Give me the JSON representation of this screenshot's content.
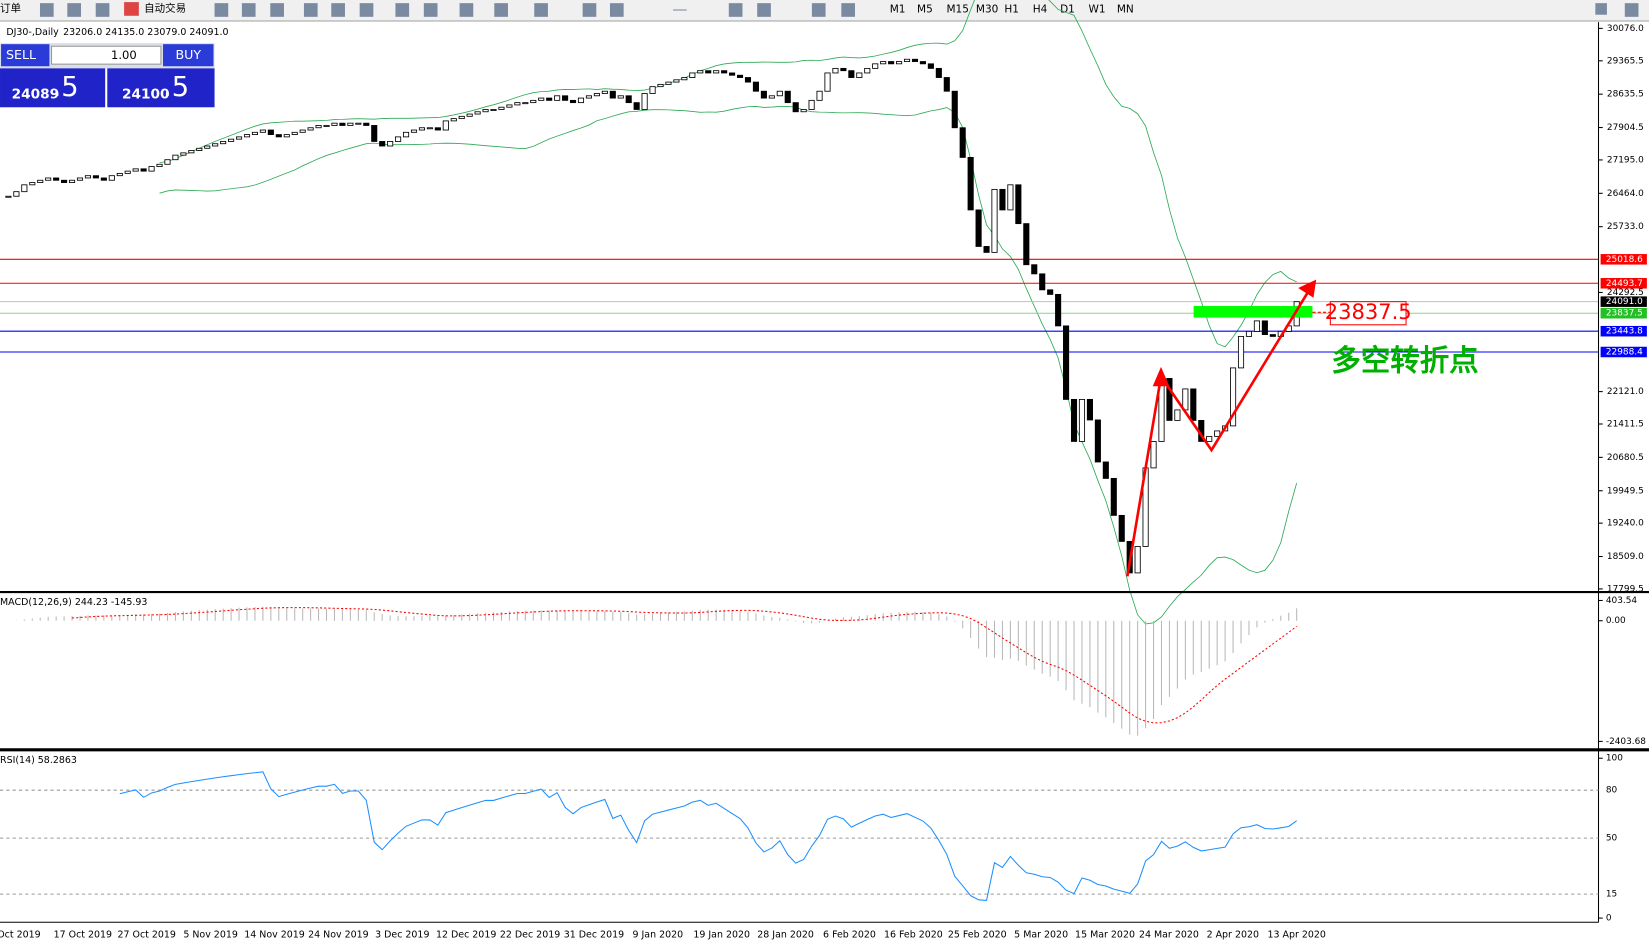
{
  "toolbar": {
    "order": "订单",
    "autotrade": "自动交易",
    "timeframes": [
      "M1",
      "M5",
      "M15",
      "M30",
      "H1",
      "H4",
      "D1",
      "W1",
      "MN"
    ]
  },
  "trade_panel": {
    "sell": "SELL",
    "lots": "1.00",
    "buy": "BUY",
    "bid_big": "24089",
    "bid_small": ".5",
    "ask_big": "24100",
    "ask_small": ".5"
  },
  "chart": {
    "symbol": "DJ30-,Daily",
    "ohlc": "23206.0 24135.0 23079.0 24091.0",
    "closes": [
      26400,
      26500,
      26650,
      26700,
      26750,
      26800,
      26750,
      26700,
      26750,
      26800,
      26850,
      26800,
      26750,
      26850,
      26900,
      26950,
      27000,
      26950,
      27050,
      27100,
      27200,
      27300,
      27350,
      27400,
      27450,
      27500,
      27550,
      27600,
      27650,
      27700,
      27750,
      27800,
      27850,
      27750,
      27700,
      27750,
      27800,
      27850,
      27900,
      27950,
      27950,
      28000,
      27950,
      28000,
      28000,
      27950,
      27600,
      27500,
      27600,
      27700,
      27800,
      27850,
      27900,
      27900,
      27850,
      28050,
      28100,
      28150,
      28200,
      28250,
      28300,
      28300,
      28350,
      28400,
      28450,
      28450,
      28500,
      28550,
      28500,
      28600,
      28500,
      28450,
      28550,
      28600,
      28650,
      28700,
      28550,
      28600,
      28450,
      28300,
      28650,
      28800,
      28850,
      28900,
      28950,
      29000,
      29100,
      29150,
      29100,
      29150,
      29100,
      29050,
      29000,
      28900,
      28700,
      28550,
      28600,
      28700,
      28450,
      28250,
      28300,
      28500,
      28700,
      29100,
      29200,
      29150,
      29000,
      29100,
      29200,
      29300,
      29350,
      29300,
      29350,
      29400,
      29350,
      29300,
      29200,
      29000,
      28700,
      27900,
      27250,
      26100,
      25300,
      25170,
      26550,
      26100,
      26650,
      25800,
      24900,
      24700,
      24350,
      24250,
      23560,
      21950,
      21030,
      21950,
      21500,
      20580,
      20220,
      19410,
      18840,
      18150,
      18730,
      20450,
      21030,
      22410,
      21490,
      21720,
      22180,
      21490,
      21030,
      21140,
      21260,
      21370,
      22640,
      23330,
      23440,
      23670,
      23370,
      23330,
      23440,
      23560,
      24091
    ],
    "ylim": [
      17799.5,
      30076.0
    ],
    "yticks": [
      {
        "value": 30076.0,
        "label": "30076.0"
      },
      {
        "value": 29365.5,
        "label": "29365.5"
      },
      {
        "value": 28635.5,
        "label": "28635.5"
      },
      {
        "value": 27904.5,
        "label": "27904.5"
      },
      {
        "value": 27195.0,
        "label": "27195.0"
      },
      {
        "value": 26464.0,
        "label": "26464.0"
      },
      {
        "value": 25733.0,
        "label": "25733.0"
      },
      {
        "value": 24292.5,
        "label": "24292.5"
      },
      {
        "value": 22121.0,
        "label": "22121.0"
      },
      {
        "value": 21411.5,
        "label": "21411.5"
      },
      {
        "value": 20680.5,
        "label": "20680.5"
      },
      {
        "value": 19949.5,
        "label": "19949.5"
      },
      {
        "value": 19240.0,
        "label": "19240.0"
      },
      {
        "value": 18509.0,
        "label": "18509.0"
      },
      {
        "value": 17799.5,
        "label": "17799.5"
      }
    ],
    "levels": [
      {
        "value": 25018.6,
        "label": "25018.6",
        "color": "#ff0000"
      },
      {
        "value": 24493.7,
        "label": "24493.7",
        "color": "#ff0000"
      },
      {
        "value": 24091.0,
        "label": "24091.0",
        "color": "#000000"
      },
      {
        "value": 23837.5,
        "label": "23837.5",
        "color": "#22c022"
      },
      {
        "value": 23443.8,
        "label": "23443.8",
        "color": "#0000ff"
      },
      {
        "value": 22988.4,
        "label": "22988.4",
        "color": "#0000ff"
      }
    ],
    "annotation_level": {
      "value": 23837.5,
      "label": "23837.5"
    },
    "annotation_text": "多空转折点",
    "dates": [
      "Oct 2019",
      "17 Oct 2019",
      "27 Oct 2019",
      "5 Nov 2019",
      "14 Nov 2019",
      "24 Nov 2019",
      "3 Dec 2019",
      "12 Dec 2019",
      "22 Dec 2019",
      "31 Dec 2019",
      "9 Jan 2020",
      "19 Jan 2020",
      "28 Jan 2020",
      "6 Feb 2020",
      "16 Feb 2020",
      "25 Feb 2020",
      "5 Mar 2020",
      "15 Mar 2020",
      "24 Mar 2020",
      "2 Apr 2020",
      "13 Apr 2020"
    ]
  },
  "macd": {
    "label": "MACD(12,26,9) 244.23 -145.93",
    "ylim": [
      -2403.68,
      403.54
    ],
    "yticks": [
      {
        "value": 403.54,
        "label": "403.54"
      },
      {
        "value": 0,
        "label": "0.00"
      },
      {
        "value": -2403.68,
        "label": "-2403.68"
      }
    ]
  },
  "rsi": {
    "label": "RSI(14) 58.2863",
    "ylim": [
      0,
      100
    ],
    "yticks": [
      100,
      80,
      50,
      15,
      0
    ]
  }
}
